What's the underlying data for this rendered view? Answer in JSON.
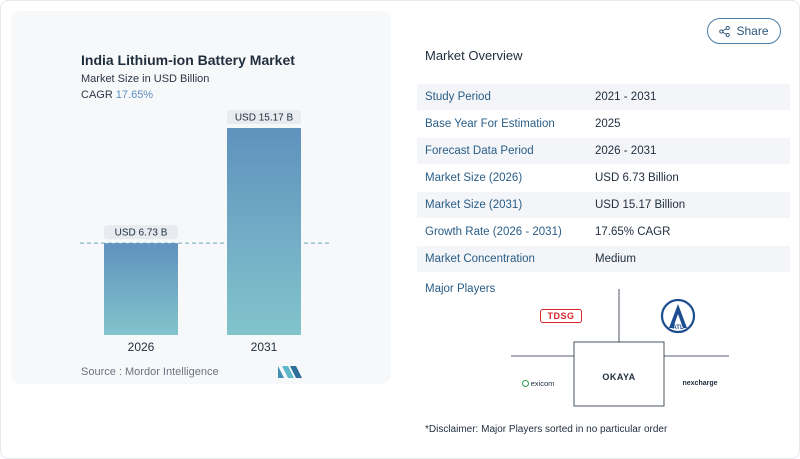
{
  "share": {
    "label": "Share"
  },
  "chart": {
    "title": "India Lithium-ion Battery Market",
    "subtitle": "Market Size in USD Billion",
    "cagr_label": "CAGR",
    "cagr_value": "17.65%",
    "source": "Source : Mordor Intelligence"
  },
  "chart_data": {
    "type": "bar",
    "categories": [
      "2026",
      "2031"
    ],
    "values": [
      6.73,
      15.17
    ],
    "data_labels": [
      "USD 6.73 B",
      "USD 15.17 B"
    ],
    "ylabel": "Market Size in USD Billion",
    "ylim": [
      0,
      15.17
    ],
    "reference_line": 6.73,
    "colors": [
      "#5f92bd",
      "#82c4cc"
    ]
  },
  "overview": {
    "title": "Market Overview",
    "rows": [
      {
        "label": "Study Period",
        "value": "2021 - 2031"
      },
      {
        "label": "Base Year For Estimation",
        "value": "2025"
      },
      {
        "label": "Forecast Data Period",
        "value": "2026 - 2031"
      },
      {
        "label": "Market Size (2026)",
        "value": "USD 6.73 Billion"
      },
      {
        "label": "Market Size (2031)",
        "value": "USD 15.17 Billion"
      },
      {
        "label": "Growth Rate (2026 - 2031)",
        "value": "17.65% CAGR"
      },
      {
        "label": "Market Concentration",
        "value": "Medium"
      }
    ]
  },
  "players": {
    "label": "Major Players",
    "logos": [
      {
        "name": "TDSG",
        "icon": "tdsg-logo"
      },
      {
        "name": "ATL",
        "icon": "atl-logo"
      },
      {
        "name": "exicom",
        "icon": "exicom-logo"
      },
      {
        "name": "OKAYA",
        "icon": "okaya-logo"
      },
      {
        "name": "nexcharge",
        "icon": "nexcharge-logo"
      }
    ]
  },
  "disclaimer": "*Disclaimer: Major Players sorted in no particular order"
}
